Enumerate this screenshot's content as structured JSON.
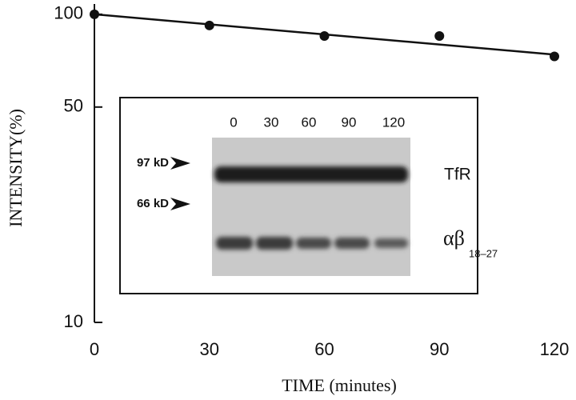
{
  "chart_data": {
    "type": "scatter",
    "x_label": "TIME (minutes)",
    "y_label": "INTENSITY(%)",
    "log_y": true,
    "xlim": [
      0,
      120
    ],
    "xticks": [
      0,
      30,
      60,
      90,
      120
    ],
    "ylim": [
      10,
      108
    ],
    "yticks": [
      10,
      50,
      100
    ],
    "series": [
      {
        "color": "#111111",
        "x": [
          0,
          30,
          60,
          90,
          120
        ],
        "values": [
          100,
          92,
          85,
          85,
          73
        ]
      }
    ],
    "trendline": {
      "color": "#111111",
      "x": [
        0,
        120
      ],
      "values": [
        100,
        74
      ]
    },
    "inset": {
      "lanes": [
        "0",
        "30",
        "60",
        "90",
        "120"
      ],
      "markers": [
        "97 kD",
        "66 kD"
      ],
      "band_labels": [
        "TfR",
        "αβ"
      ],
      "band_subscript": "18–27"
    }
  }
}
